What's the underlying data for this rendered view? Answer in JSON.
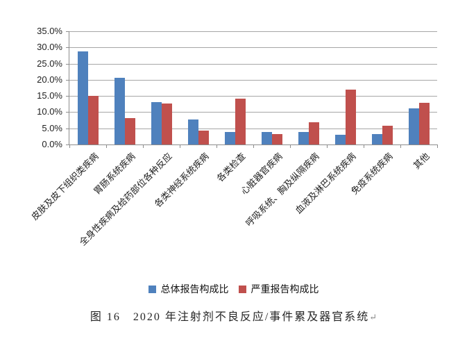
{
  "figure": {
    "caption": "图 16　2020 年注射剂不良反应/事件累及器官系统",
    "paragraph_mark": "↵"
  },
  "chart_data": {
    "type": "bar",
    "title": "",
    "categories": [
      "皮肤及皮下组织类疾病",
      "胃肠系统疾病",
      "全身性疾病及给药部位各种反应",
      "各类神经系统疾病",
      "各类检查",
      "心脏器官疾病",
      "呼吸系统、胸及纵隔疾病",
      "血液及淋巴系统疾病",
      "免疫系统疾病",
      "其他"
    ],
    "series": [
      {
        "name": "总体报告构成比",
        "color": "#4f81bd",
        "values": [
          28.8,
          20.6,
          13.1,
          7.8,
          3.9,
          3.9,
          3.9,
          3.0,
          3.2,
          11.2
        ]
      },
      {
        "name": "严重报告构成比",
        "color": "#c0504d",
        "values": [
          15.0,
          8.1,
          12.7,
          4.2,
          14.1,
          3.2,
          6.9,
          17.0,
          5.9,
          12.9
        ]
      }
    ],
    "xlabel": "",
    "ylabel": "",
    "ylim": [
      0,
      35
    ],
    "ytick_step": 5,
    "ytick_labels": [
      "0.0%",
      "5.0%",
      "10.0%",
      "15.0%",
      "20.0%",
      "25.0%",
      "30.0%",
      "35.0%"
    ],
    "grid": true,
    "gridline_color": "#a6a6a6",
    "axis_color": "#8c8c8c",
    "legend_position": "bottom",
    "x_label_rotation_deg": 45
  }
}
